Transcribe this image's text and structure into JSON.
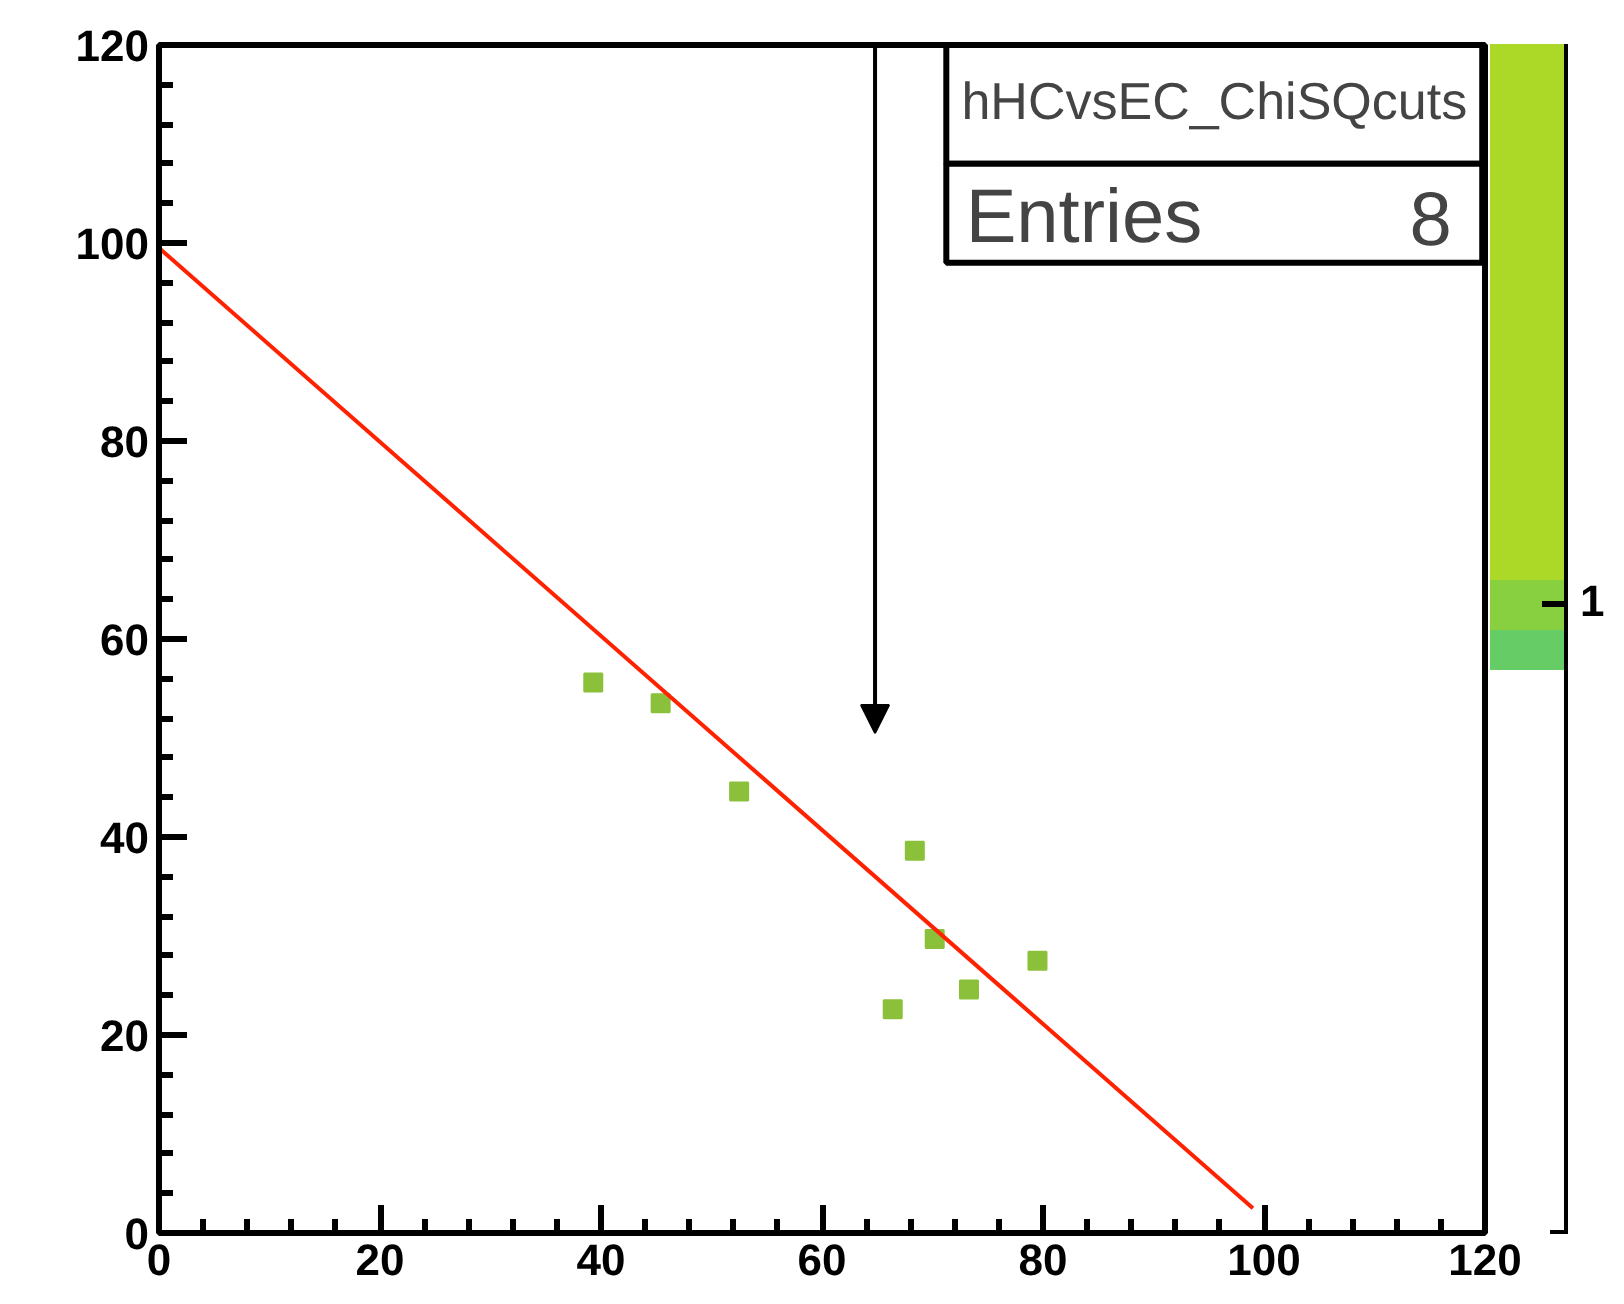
{
  "chart_data": {
    "type": "scatter",
    "title": "hHCvsEC_ChiSQcuts",
    "annotations": [
      "Entries",
      "8",
      "1"
    ],
    "series": [
      {
        "color": "#8bc13a",
        "x": [
          39.3,
          45.4,
          52.5,
          68.4,
          70.2,
          66.4,
          73.3,
          79.5
        ],
        "values": [
          55.6,
          53.5,
          44.6,
          38.6,
          29.7,
          22.6,
          24.6,
          27.5
        ]
      },
      {
        "type": "line",
        "marker": "none",
        "color": "#ff2200",
        "x": [
          0,
          99
        ],
        "values": [
          99.5,
          2.5
        ]
      }
    ],
    "xlim": [
      0,
      120
    ],
    "ylim": [
      0,
      120
    ],
    "xticks": [
      0,
      20,
      40,
      60,
      80,
      100,
      120
    ],
    "yticks": [
      0,
      20,
      40,
      60,
      80,
      100,
      120
    ],
    "marker": "square",
    "grid": false
  }
}
